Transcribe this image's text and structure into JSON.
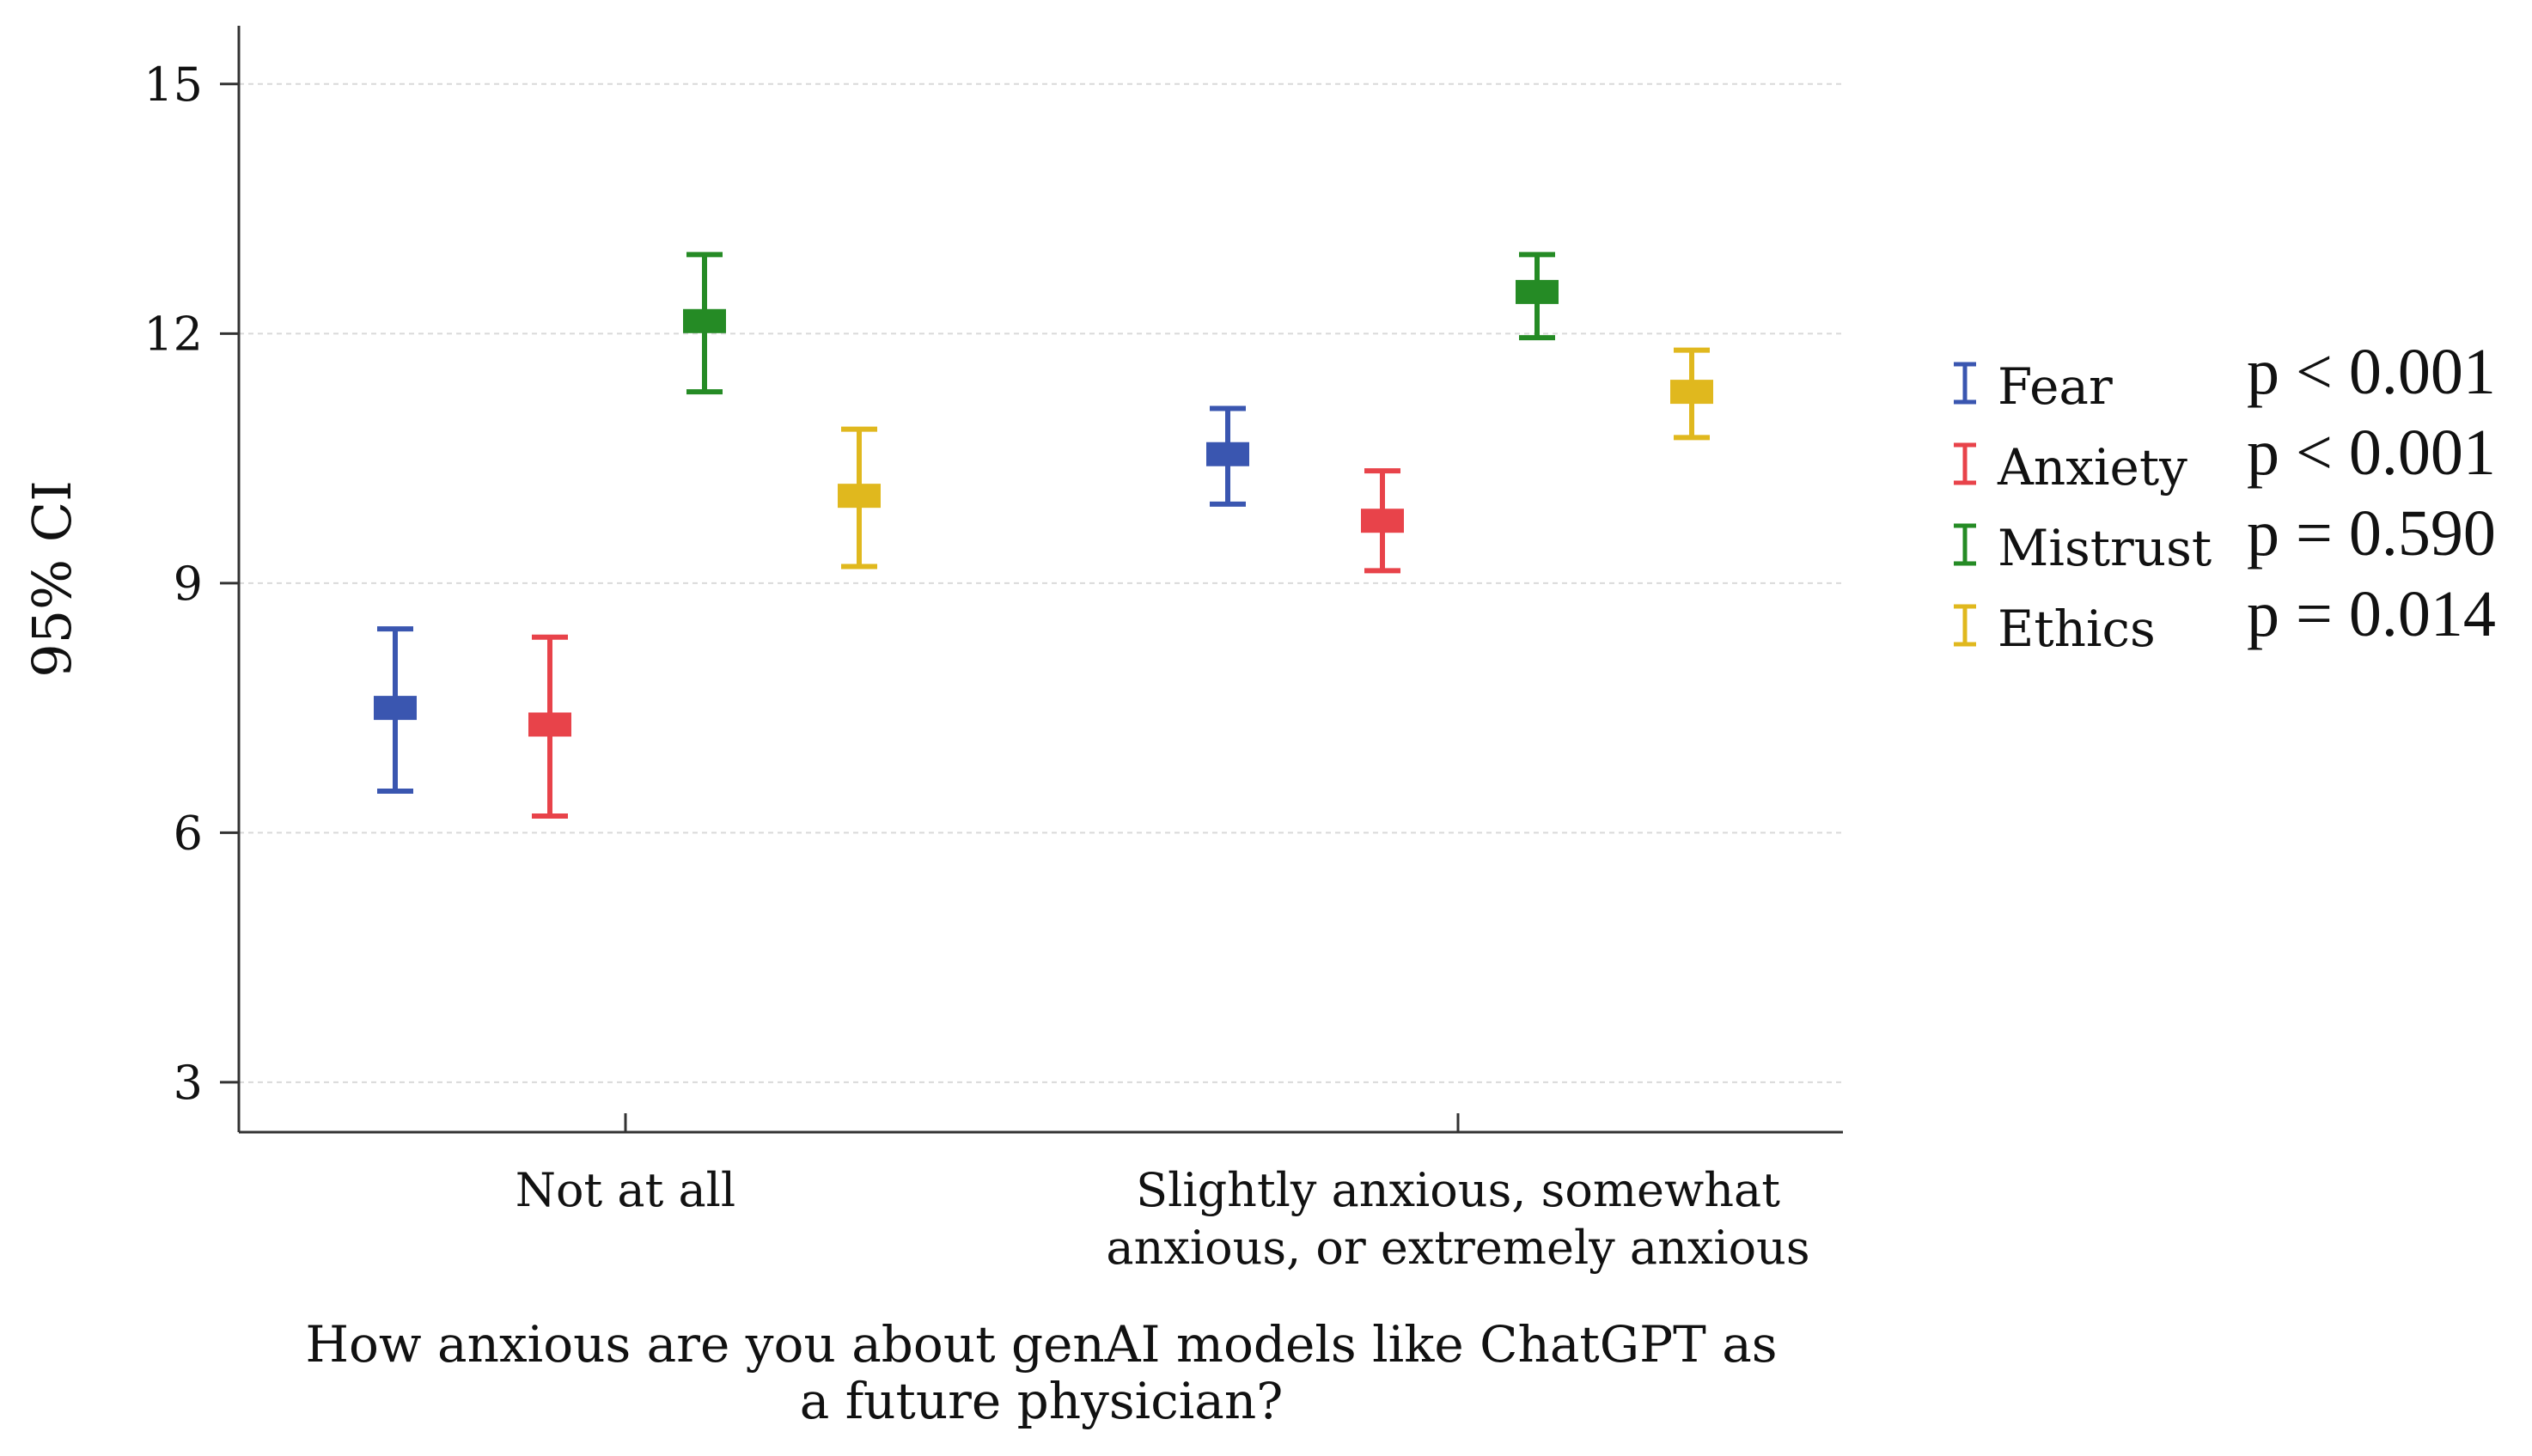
{
  "chart_data": {
    "type": "errorbar",
    "ylabel": "95% CI",
    "ylim": [
      2.4,
      15.7
    ],
    "yticks": [
      3,
      6,
      9,
      12,
      15
    ],
    "ytick_labels": [
      "3",
      "6",
      "9",
      "12",
      "15"
    ],
    "grid": true,
    "categories": [
      {
        "lines": [
          "Not at all"
        ]
      },
      {
        "lines": [
          "Slightly anxious, somewhat",
          "anxious, or extremely anxious"
        ]
      }
    ],
    "xlabel_lines": [
      "How anxious are you about genAI models like ChatGPT as",
      "a future physician?"
    ],
    "legend_position": "right",
    "series": [
      {
        "name": "Fear",
        "color": "#3a56b0",
        "p_value": "p < 0.001",
        "means": [
          7.5,
          10.55
        ],
        "lower": [
          6.5,
          9.95
        ],
        "upper": [
          8.45,
          11.1
        ]
      },
      {
        "name": "Anxiety",
        "color": "#e8434a",
        "p_value": "p < 0.001",
        "means": [
          7.3,
          9.75
        ],
        "lower": [
          6.2,
          9.15
        ],
        "upper": [
          8.35,
          10.35
        ]
      },
      {
        "name": "Mistrust",
        "color": "#258b25",
        "p_value": "p = 0.590",
        "means": [
          12.15,
          12.5
        ],
        "lower": [
          11.3,
          11.95
        ],
        "upper": [
          12.95,
          12.95
        ]
      },
      {
        "name": "Ethics",
        "color": "#e0b81e",
        "p_value": "p = 0.014",
        "means": [
          10.05,
          11.3
        ],
        "lower": [
          9.2,
          10.75
        ],
        "upper": [
          10.85,
          11.8
        ]
      }
    ]
  }
}
